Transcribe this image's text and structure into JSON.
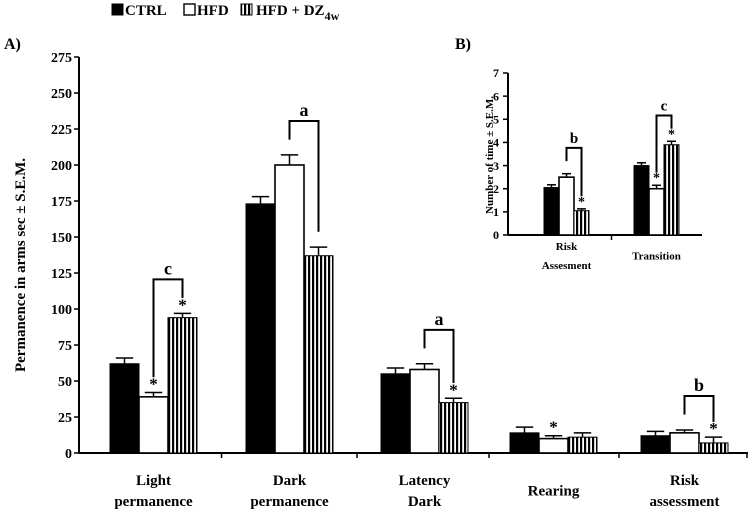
{
  "legend": {
    "items": [
      {
        "label": "CTRL",
        "pattern": "solid"
      },
      {
        "label": "HFD",
        "pattern": "open"
      },
      {
        "label": "HFD + DZ",
        "subscript": "4w",
        "pattern": "striped"
      }
    ]
  },
  "colors": {
    "ink": "#000000",
    "background": "#ffffff"
  },
  "chart_data": [
    {
      "panel_label": "A)",
      "type": "bar",
      "ylabel": "Permanence in arms sec ± S.E.M.",
      "ylim": [
        0,
        275
      ],
      "yticks": [
        0,
        25,
        50,
        75,
        100,
        125,
        150,
        175,
        200,
        225,
        250,
        275
      ],
      "categories": [
        {
          "lines": [
            "Light",
            "permanence"
          ]
        },
        {
          "lines": [
            "Dark",
            "permanence"
          ]
        },
        {
          "lines": [
            "Latency",
            "Dark"
          ]
        },
        {
          "lines": [
            "Rearing"
          ]
        },
        {
          "lines": [
            "Risk",
            "assessment"
          ]
        }
      ],
      "series": [
        {
          "name": "CTRL",
          "values": [
            62,
            173,
            55,
            14,
            12
          ],
          "errors": [
            4,
            5,
            4,
            4,
            3
          ]
        },
        {
          "name": "HFD",
          "values": [
            39,
            200,
            58,
            10,
            14
          ],
          "errors": [
            3,
            7,
            4,
            2,
            2
          ]
        },
        {
          "name": "HFD + DZ4w",
          "values": [
            94,
            137,
            35,
            11,
            7
          ],
          "errors": [
            3,
            6,
            3,
            3,
            4
          ]
        }
      ],
      "significance_stars": [
        [
          0,
          1
        ],
        [
          0,
          2
        ],
        [
          2,
          2
        ],
        [
          3,
          1
        ],
        [
          4,
          2
        ]
      ],
      "brackets": [
        {
          "category": 0,
          "from_series": 1,
          "to_series": 2,
          "label": "c"
        },
        {
          "category": 1,
          "from_series": 1,
          "to_series": 2,
          "label": "a"
        },
        {
          "category": 2,
          "from_series": 1,
          "to_series": 2,
          "label": "a"
        },
        {
          "category": 4,
          "from_series": 1,
          "to_series": 2,
          "label": "b"
        }
      ]
    },
    {
      "panel_label": "B)",
      "type": "bar",
      "ylabel": "Number of time ± S.E.M.",
      "ylim": [
        0,
        7
      ],
      "yticks": [
        0,
        1,
        2,
        3,
        4,
        5,
        6,
        7
      ],
      "categories": [
        {
          "lines": [
            "Risk",
            "Assesment"
          ]
        },
        {
          "lines": [
            "Transition"
          ]
        }
      ],
      "series": [
        {
          "name": "CTRL",
          "values": [
            2.05,
            3.0
          ],
          "errors": [
            0.12,
            0.12
          ]
        },
        {
          "name": "HFD",
          "values": [
            2.5,
            2.0
          ],
          "errors": [
            0.15,
            0.15
          ]
        },
        {
          "name": "HFD + DZ4w",
          "values": [
            1.05,
            3.9
          ],
          "errors": [
            0.08,
            0.15
          ]
        }
      ],
      "significance_stars": [
        [
          0,
          2
        ],
        [
          1,
          1
        ],
        [
          1,
          2
        ]
      ],
      "brackets": [
        {
          "category": 0,
          "from_series": 1,
          "to_series": 2,
          "label": "b"
        },
        {
          "category": 1,
          "from_series": 1,
          "to_series": 2,
          "label": "c"
        }
      ]
    }
  ]
}
